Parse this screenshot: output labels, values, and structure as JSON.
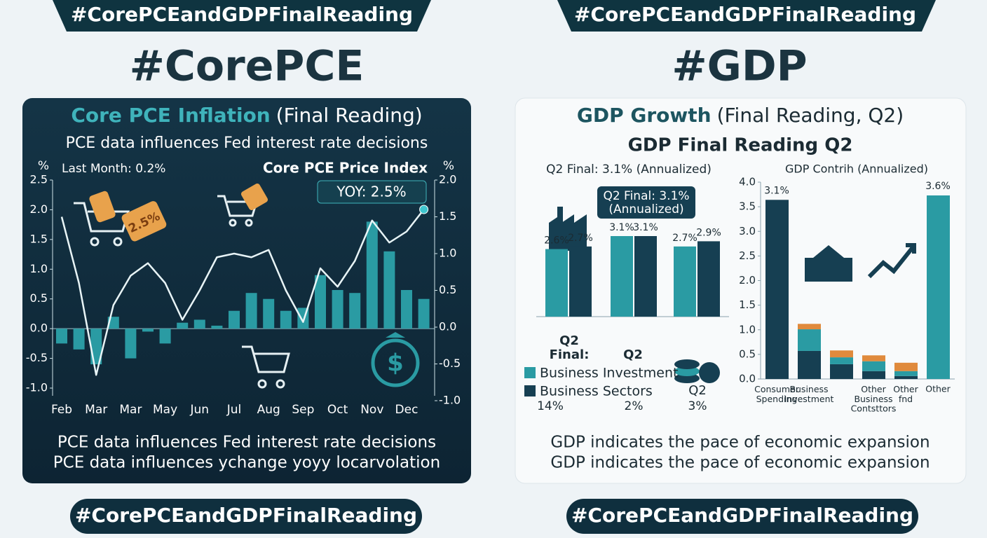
{
  "hashtags_top": [
    "#CorePCEandGDPFinalReading",
    "#CorePCEandGDPFinalReading"
  ],
  "headings": [
    "#CorePCE",
    "#GDP"
  ],
  "hashtags_bottom": [
    "#CorePCEandGDPFinalReading",
    "#CorePCEandGDPFinalReading"
  ],
  "pce_panel": {
    "title": "Core PCE Inflation",
    "title_suffix": "(Final Reading)",
    "subtitle": "PCE data influences Fed interest rate decisions",
    "icon_tag": "2.5%",
    "footer": [
      "PCE data influences Fed interest rate decisions",
      "PCE data influences ychange yoyy locarvolation"
    ]
  },
  "gdp_panel": {
    "title": "GDP Growth",
    "title_suffix": "(Final Reading, Q2)",
    "subtitle": "GDP Final Reading Q2",
    "notes": [
      "Q2",
      "Final:",
      "Q2",
      "14%",
      "2%",
      "Q2",
      "3%"
    ],
    "footer": [
      "GDP indicates the pace of economic expansion",
      "GDP indicates the pace of economic expansion"
    ]
  },
  "chart_data": [
    {
      "type": "bar_line",
      "ylabel": "%",
      "y2label": "%",
      "annotations": [
        "Last Month: 0.2%",
        "Core PCE Price Index",
        "YOY: 2.5%"
      ],
      "categories": [
        "Feb",
        null,
        "Mar",
        null,
        "Mar",
        null,
        "May",
        null,
        "Jun",
        null,
        "Jul",
        null,
        "Aug",
        null,
        "Sep",
        null,
        "Oct",
        null,
        "Nov",
        null,
        "Dec",
        null
      ],
      "series": [
        {
          "type": "bar",
          "color": "#2a9ba3",
          "values": [
            -0.25,
            -0.35,
            -0.6,
            0.2,
            -0.5,
            -0.05,
            -0.25,
            0.1,
            0.15,
            0.05,
            0.3,
            0.6,
            0.5,
            0.3,
            0.35,
            0.9,
            0.65,
            0.6,
            1.8,
            1.3,
            0.65,
            0.5
          ]
        },
        {
          "type": "line",
          "color": "#e8f4f6",
          "axis": "y2",
          "values": [
            1.5,
            0.6,
            -0.65,
            0.3,
            0.7,
            0.87,
            0.6,
            0.1,
            0.5,
            0.95,
            1.0,
            0.95,
            1.05,
            0.5,
            0.07,
            0.8,
            0.55,
            0.9,
            1.45,
            1.15,
            1.3,
            1.6
          ]
        }
      ],
      "ylim": [
        -1,
        2.5
      ],
      "yticks": [
        {
          "value": -1,
          "label": "-1.0"
        },
        -0.5,
        {
          "value": 0,
          "label": "0.0"
        },
        0.5,
        {
          "value": 1,
          "label": "1.0"
        },
        1.5,
        {
          "value": 2,
          "label": "2.0"
        },
        2.5
      ],
      "y2lim": [
        -1,
        2
      ],
      "y2ticks": [
        {
          "value": -1,
          "label": "-1.0"
        },
        -0.5,
        {
          "value": 0,
          "label": "0.0"
        },
        0.5,
        {
          "value": 1,
          "label": "1.0"
        },
        1.5,
        {
          "value": 2,
          "label": "2.0"
        }
      ]
    },
    {
      "type": "bar",
      "title": "Q2 Final: 3.1% (Annualized)",
      "callout": [
        "Q2 Final: 3.1%",
        "(Annualized)"
      ],
      "categories": [
        null,
        null,
        null
      ],
      "series": [
        {
          "name": "Business Investment",
          "color": "#2a9ba3",
          "values": [
            2.6,
            3.1,
            2.7
          ],
          "value_labels": [
            "2.6%",
            "3.1%",
            "2.7%"
          ]
        },
        {
          "name": "Business Sectors",
          "color": "#163f52",
          "values": [
            2.7,
            3.1,
            2.9
          ],
          "value_labels": [
            "2.7%",
            "3.1%",
            "2.9%"
          ]
        }
      ]
    },
    {
      "type": "stacked_bar",
      "title": "GDP Contrih (Annualized)",
      "annotations": [
        "3.1%",
        "3.6%"
      ],
      "categories": [
        "Consumer\nSpending",
        "Business\nInvestment",
        null,
        "Other\nBusiness\nContsttors",
        "Other\nfnd",
        "Other"
      ],
      "series": [
        {
          "color": "#163f52",
          "values": [
            3.64,
            0.57,
            0.3,
            0.16,
            0.06,
            null
          ]
        },
        {
          "color": "#2a9ba3",
          "values": [
            null,
            0.44,
            0.14,
            0.2,
            0.1,
            3.73
          ]
        },
        {
          "color": "#e08a3c",
          "values": [
            null,
            0.11,
            0.14,
            0.12,
            0.17,
            null
          ]
        }
      ],
      "ylim": [
        0,
        4
      ],
      "yticks": [
        {
          "value": 0,
          "label": "0.0"
        },
        0.5,
        {
          "value": 1,
          "label": "1.0"
        },
        1.5,
        {
          "value": 2,
          "label": "2.0"
        },
        2.5,
        {
          "value": 3,
          "label": "3.0"
        },
        3.5,
        {
          "value": 4,
          "label": "4.0"
        }
      ]
    }
  ]
}
